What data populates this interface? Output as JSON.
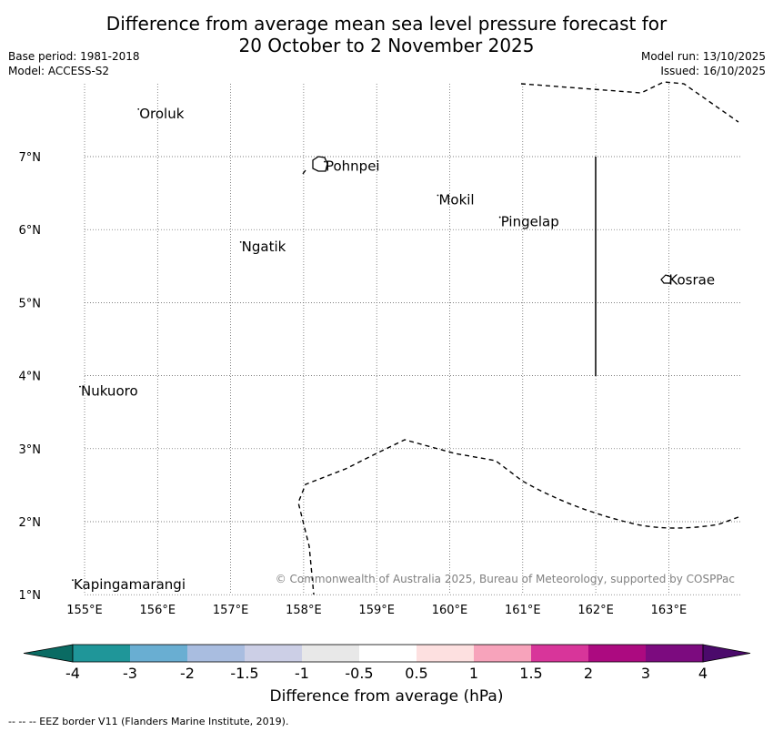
{
  "title_line1": "Difference from average mean sea level pressure forecast for",
  "title_line2": "20 October to 2 November 2025",
  "meta": {
    "base_period": "Base period: 1981-2018",
    "model": "Model: ACCESS-S2",
    "model_run": "Model run: 13/10/2025",
    "issued": "Issued: 16/10/2025"
  },
  "map": {
    "lon_labels": [
      "155°E",
      "156°E",
      "157°E",
      "158°E",
      "159°E",
      "160°E",
      "161°E",
      "162°E",
      "163°E"
    ],
    "lat_labels": [
      "7°N",
      "6°N",
      "5°N",
      "4°N",
      "3°N",
      "2°N",
      "1°N"
    ],
    "places": [
      {
        "name": "Oroluk",
        "lon": 155.75,
        "lat": 7.6
      },
      {
        "name": "Pohnpei",
        "lon": 158.3,
        "lat": 6.88
      },
      {
        "name": "Mokil",
        "lon": 159.85,
        "lat": 6.42
      },
      {
        "name": "Pingelap",
        "lon": 160.7,
        "lat": 6.12
      },
      {
        "name": "Ngatik",
        "lon": 157.15,
        "lat": 5.78
      },
      {
        "name": "Kosrae",
        "lon": 163.0,
        "lat": 5.32
      },
      {
        "name": "Nukuoro",
        "lon": 154.95,
        "lat": 3.8
      },
      {
        "name": "Kapingamarangi",
        "lon": 154.85,
        "lat": 1.15
      }
    ],
    "copyright": "© Commonwealth of Australia 2025, Bureau of Meteorology, supported by COSPPac"
  },
  "colorbar": {
    "ticks": [
      "-4",
      "-3",
      "-2",
      "-1.5",
      "-1",
      "-0.5",
      "0.5",
      "1",
      "1.5",
      "2",
      "3",
      "4"
    ],
    "colors": [
      "#0a6b63",
      "#1f9699",
      "#69aed2",
      "#a9bde0",
      "#cccfe6",
      "#e8e8e8",
      "#ffffff",
      "#fde0e0",
      "#f7a3bb",
      "#d8359a",
      "#ac0a80",
      "#7c0b7f",
      "#4b0a6b"
    ],
    "title": "Difference from average (hPa)"
  },
  "footer": "--  --  -- EEZ border V11 (Flanders Marine Institute, 2019)."
}
